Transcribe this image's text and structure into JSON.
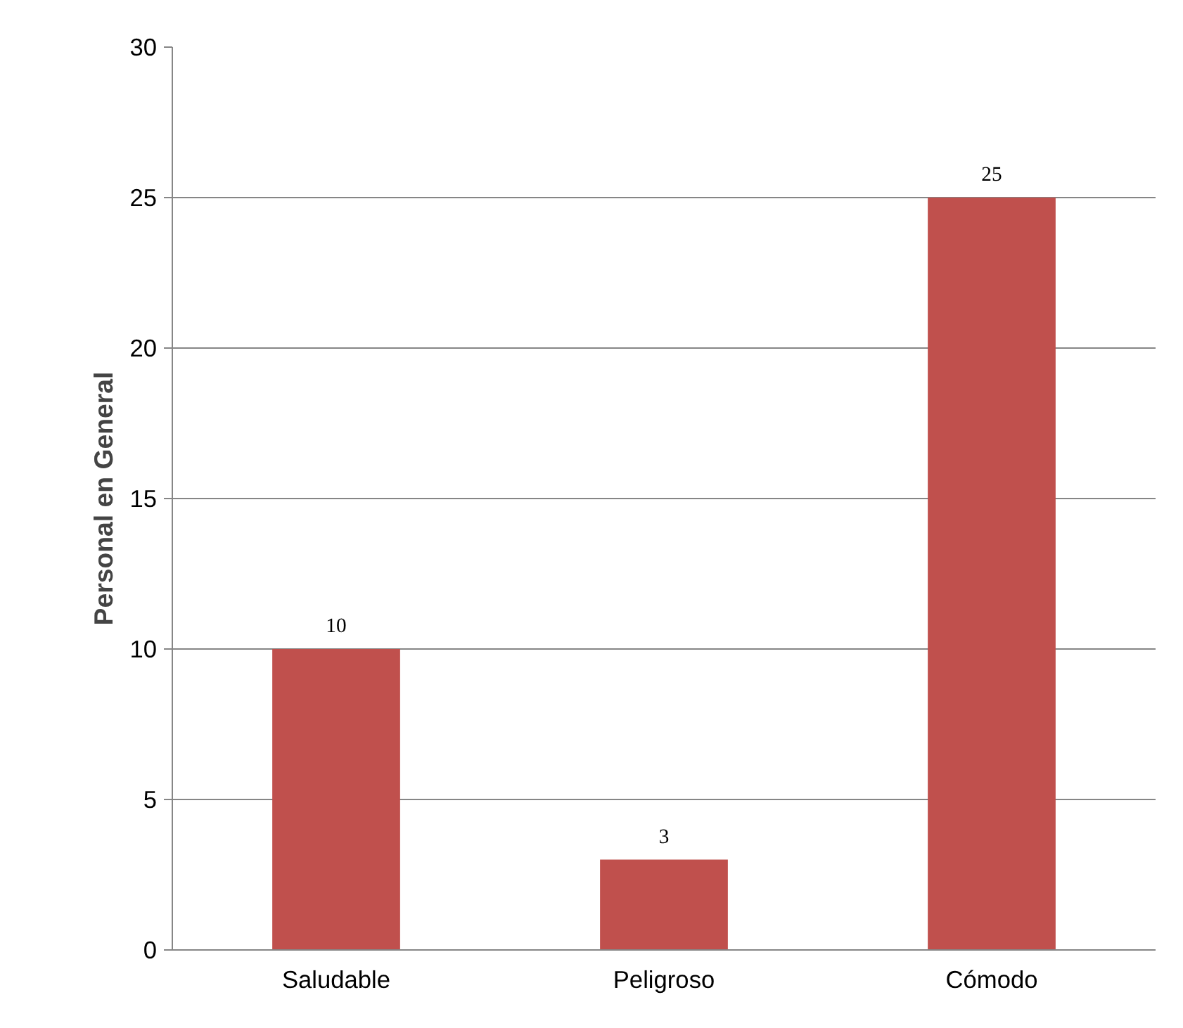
{
  "chart_data": {
    "type": "bar",
    "ylabel": "Personal en General",
    "categories": [
      "Saludable",
      "Peligroso",
      "Cómodo"
    ],
    "values": [
      10,
      3,
      25
    ],
    "color": "#c0504d",
    "ylim": [
      0,
      30
    ],
    "yticks": [
      0,
      5,
      10,
      15,
      20,
      25,
      30
    ],
    "grid": "y",
    "data_labels": true
  }
}
